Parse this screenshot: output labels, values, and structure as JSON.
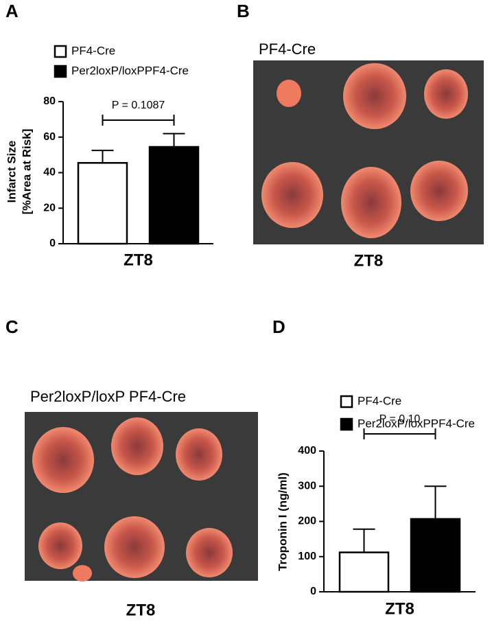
{
  "panels": {
    "a": "A",
    "b": "B",
    "c": "C",
    "d": "D"
  },
  "photos": [
    {
      "label": "PF4-Cre",
      "caption": "ZT8"
    },
    {
      "label": "Per2loxP/loxP PF4-Cre",
      "caption": "ZT8"
    }
  ],
  "chart_data": [
    {
      "type": "bar",
      "categories": [
        "ZT8"
      ],
      "y_label": [
        "Infarct Size",
        "[%Area at Risk]"
      ],
      "annotation": "P = 0.1087",
      "series": [
        {
          "name": "PF4-Cre",
          "color": "#ffffff",
          "values": [
            45.5
          ],
          "errors": [
            7
          ]
        },
        {
          "name": "Per2loxP/loxPPF4-Cre",
          "color": "#000000",
          "values": [
            54.5
          ],
          "errors": [
            7.5
          ]
        }
      ],
      "ylim": [
        0,
        80
      ],
      "yticks": [
        0,
        20,
        40,
        60,
        80
      ]
    },
    {
      "type": "bar",
      "categories": [
        "ZT8"
      ],
      "y_label": [
        "Troponin I (ng/ml)"
      ],
      "annotation": "P = 0.10",
      "series": [
        {
          "name": "PF4-Cre",
          "color": "#ffffff",
          "values": [
            112
          ],
          "errors": [
            66
          ]
        },
        {
          "name": "Per2loxP/loxPPF4-Cre",
          "color": "#000000",
          "values": [
            207
          ],
          "errors": [
            93
          ]
        }
      ],
      "ylim": [
        0,
        400
      ],
      "yticks": [
        0,
        100,
        200,
        300,
        400
      ]
    }
  ]
}
